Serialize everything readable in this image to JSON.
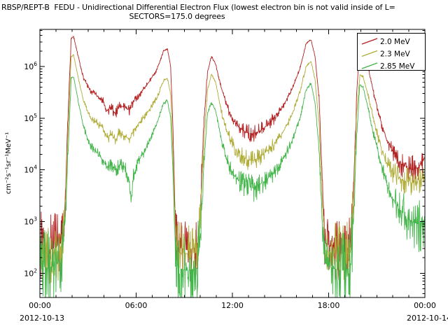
{
  "chart_data": {
    "type": "line",
    "title_line1": "RBSP/REPT-B  FEDU - Unidirectional Differential Electron Flux (lowest electron bin is not valid inside of L=",
    "title_line2": "SECTORS=175.0 degrees",
    "ylabel": "cm⁻²s⁻¹sr⁻¹MeV⁻¹",
    "x_axis": {
      "range_hours": [
        0,
        24
      ],
      "ticks": [
        {
          "t": 0,
          "label": "00:00"
        },
        {
          "t": 6,
          "label": "06:00"
        },
        {
          "t": 12,
          "label": "12:00"
        },
        {
          "t": 18,
          "label": "18:00"
        },
        {
          "t": 24,
          "label": "00:00"
        }
      ],
      "minor_tick_hours": 1,
      "date_left": "2012-10-13",
      "date_right": "2012-10-14"
    },
    "y_axis": {
      "scale": "log",
      "tick_exponents": [
        2,
        3,
        4,
        5,
        6
      ],
      "range_log10": [
        1.53,
        6.72
      ]
    },
    "legend": {
      "position": "top-right"
    },
    "point_format": "[hours_since_2012-10-13T00:00, log10_flux, noise_amplitude_decades]",
    "series": [
      {
        "name": "2.0 MeV",
        "color": "#b22222",
        "points": [
          [
            0.0,
            2.5,
            0.7
          ],
          [
            0.5,
            2.45,
            0.7
          ],
          [
            1.0,
            2.5,
            0.65
          ],
          [
            1.35,
            2.6,
            0.5
          ],
          [
            1.55,
            3.2,
            0.15
          ],
          [
            1.75,
            5.0,
            0.05
          ],
          [
            1.95,
            6.55,
            0.02
          ],
          [
            2.1,
            6.58,
            0.02
          ],
          [
            2.35,
            6.25,
            0.03
          ],
          [
            2.7,
            5.8,
            0.04
          ],
          [
            3.1,
            5.55,
            0.06
          ],
          [
            3.5,
            5.45,
            0.07
          ],
          [
            3.9,
            5.35,
            0.08
          ],
          [
            4.2,
            5.15,
            0.1
          ],
          [
            4.45,
            5.2,
            0.1
          ],
          [
            4.7,
            5.1,
            0.12
          ],
          [
            5.0,
            5.25,
            0.1
          ],
          [
            5.3,
            5.2,
            0.1
          ],
          [
            5.6,
            5.15,
            0.1
          ],
          [
            5.9,
            5.35,
            0.07
          ],
          [
            6.3,
            5.5,
            0.05
          ],
          [
            6.8,
            5.7,
            0.04
          ],
          [
            7.3,
            5.95,
            0.03
          ],
          [
            7.7,
            6.3,
            0.02
          ],
          [
            7.95,
            6.35,
            0.02
          ],
          [
            8.15,
            6.0,
            0.03
          ],
          [
            8.3,
            4.8,
            0.1
          ],
          [
            8.45,
            2.8,
            0.5
          ],
          [
            8.6,
            2.5,
            0.6
          ],
          [
            9.2,
            2.45,
            0.6
          ],
          [
            9.8,
            2.5,
            0.6
          ],
          [
            10.0,
            3.2,
            0.3
          ],
          [
            10.2,
            4.8,
            0.08
          ],
          [
            10.45,
            5.9,
            0.03
          ],
          [
            10.7,
            6.2,
            0.02
          ],
          [
            10.95,
            6.05,
            0.03
          ],
          [
            11.3,
            5.6,
            0.06
          ],
          [
            11.7,
            5.2,
            0.1
          ],
          [
            12.1,
            4.95,
            0.13
          ],
          [
            12.5,
            4.8,
            0.17
          ],
          [
            12.9,
            4.72,
            0.18
          ],
          [
            13.3,
            4.7,
            0.18
          ],
          [
            13.7,
            4.75,
            0.15
          ],
          [
            14.1,
            4.85,
            0.12
          ],
          [
            14.6,
            5.0,
            0.08
          ],
          [
            15.1,
            5.2,
            0.06
          ],
          [
            15.7,
            5.55,
            0.04
          ],
          [
            16.2,
            5.95,
            0.03
          ],
          [
            16.6,
            6.45,
            0.02
          ],
          [
            16.9,
            6.52,
            0.02
          ],
          [
            17.15,
            6.2,
            0.03
          ],
          [
            17.4,
            5.4,
            0.08
          ],
          [
            17.6,
            3.8,
            0.3
          ],
          [
            17.75,
            2.6,
            0.55
          ],
          [
            18.2,
            2.5,
            0.6
          ],
          [
            18.8,
            2.45,
            0.6
          ],
          [
            19.35,
            2.5,
            0.6
          ],
          [
            19.55,
            3.6,
            0.25
          ],
          [
            19.75,
            5.5,
            0.05
          ],
          [
            19.95,
            6.45,
            0.02
          ],
          [
            20.15,
            6.4,
            0.02
          ],
          [
            20.45,
            6.0,
            0.04
          ],
          [
            20.8,
            5.5,
            0.06
          ],
          [
            21.2,
            5.0,
            0.1
          ],
          [
            21.6,
            4.6,
            0.15
          ],
          [
            22.0,
            4.35,
            0.18
          ],
          [
            22.4,
            4.15,
            0.25
          ],
          [
            22.8,
            4.05,
            0.28
          ],
          [
            23.2,
            4.0,
            0.28
          ],
          [
            23.6,
            4.05,
            0.28
          ],
          [
            24.0,
            4.25,
            0.3
          ]
        ]
      },
      {
        "name": "2.3 MeV",
        "color": "#b0ad3a",
        "points": [
          [
            0.0,
            2.4,
            0.6
          ],
          [
            0.5,
            2.35,
            0.6
          ],
          [
            1.0,
            2.4,
            0.6
          ],
          [
            1.35,
            2.5,
            0.5
          ],
          [
            1.55,
            3.0,
            0.15
          ],
          [
            1.75,
            4.7,
            0.05
          ],
          [
            1.95,
            6.2,
            0.02
          ],
          [
            2.1,
            6.22,
            0.02
          ],
          [
            2.35,
            5.85,
            0.03
          ],
          [
            2.7,
            5.35,
            0.05
          ],
          [
            3.1,
            5.05,
            0.07
          ],
          [
            3.5,
            4.92,
            0.08
          ],
          [
            3.9,
            4.82,
            0.09
          ],
          [
            4.2,
            4.62,
            0.11
          ],
          [
            4.45,
            4.68,
            0.11
          ],
          [
            4.7,
            4.58,
            0.13
          ],
          [
            5.0,
            4.72,
            0.11
          ],
          [
            5.3,
            4.65,
            0.11
          ],
          [
            5.6,
            4.6,
            0.11
          ],
          [
            5.9,
            4.8,
            0.08
          ],
          [
            6.3,
            4.95,
            0.06
          ],
          [
            6.8,
            5.15,
            0.05
          ],
          [
            7.3,
            5.4,
            0.04
          ],
          [
            7.7,
            5.72,
            0.03
          ],
          [
            7.95,
            5.78,
            0.03
          ],
          [
            8.15,
            5.45,
            0.04
          ],
          [
            8.3,
            4.3,
            0.12
          ],
          [
            8.45,
            2.7,
            0.5
          ],
          [
            8.6,
            2.4,
            0.6
          ],
          [
            9.2,
            2.38,
            0.6
          ],
          [
            9.8,
            2.4,
            0.6
          ],
          [
            10.0,
            3.0,
            0.3
          ],
          [
            10.2,
            4.4,
            0.08
          ],
          [
            10.45,
            5.55,
            0.03
          ],
          [
            10.7,
            5.85,
            0.02
          ],
          [
            10.95,
            5.7,
            0.03
          ],
          [
            11.3,
            5.15,
            0.07
          ],
          [
            11.7,
            4.7,
            0.12
          ],
          [
            12.1,
            4.45,
            0.15
          ],
          [
            12.5,
            4.3,
            0.18
          ],
          [
            12.9,
            4.2,
            0.2
          ],
          [
            13.3,
            4.18,
            0.2
          ],
          [
            13.7,
            4.25,
            0.17
          ],
          [
            14.1,
            4.35,
            0.13
          ],
          [
            14.6,
            4.5,
            0.09
          ],
          [
            15.1,
            4.7,
            0.07
          ],
          [
            15.7,
            5.05,
            0.05
          ],
          [
            16.2,
            5.5,
            0.04
          ],
          [
            16.6,
            6.0,
            0.02
          ],
          [
            16.9,
            6.1,
            0.02
          ],
          [
            17.15,
            5.75,
            0.03
          ],
          [
            17.4,
            4.9,
            0.1
          ],
          [
            17.6,
            3.4,
            0.3
          ],
          [
            17.75,
            2.45,
            0.55
          ],
          [
            18.2,
            2.4,
            0.6
          ],
          [
            18.8,
            2.38,
            0.6
          ],
          [
            19.35,
            2.4,
            0.6
          ],
          [
            19.55,
            3.3,
            0.25
          ],
          [
            19.75,
            5.1,
            0.05
          ],
          [
            19.95,
            5.85,
            0.02
          ],
          [
            20.15,
            5.8,
            0.03
          ],
          [
            20.45,
            5.45,
            0.05
          ],
          [
            20.8,
            5.0,
            0.08
          ],
          [
            21.2,
            4.5,
            0.12
          ],
          [
            21.6,
            4.15,
            0.17
          ],
          [
            22.0,
            3.95,
            0.22
          ],
          [
            22.4,
            3.85,
            0.26
          ],
          [
            22.8,
            3.78,
            0.28
          ],
          [
            23.2,
            3.75,
            0.28
          ],
          [
            23.6,
            3.78,
            0.28
          ],
          [
            24.0,
            3.9,
            0.3
          ]
        ]
      },
      {
        "name": "2.85 MeV",
        "color": "#43b54a",
        "points": [
          [
            0.0,
            2.15,
            0.75
          ],
          [
            0.5,
            2.1,
            0.75
          ],
          [
            1.0,
            2.15,
            0.7
          ],
          [
            1.35,
            2.3,
            0.55
          ],
          [
            1.55,
            2.8,
            0.2
          ],
          [
            1.75,
            4.3,
            0.06
          ],
          [
            1.95,
            5.78,
            0.02
          ],
          [
            2.1,
            5.8,
            0.02
          ],
          [
            2.35,
            5.4,
            0.04
          ],
          [
            2.7,
            4.85,
            0.06
          ],
          [
            3.1,
            4.5,
            0.08
          ],
          [
            3.5,
            4.35,
            0.1
          ],
          [
            3.9,
            4.2,
            0.11
          ],
          [
            4.2,
            4.05,
            0.13
          ],
          [
            4.45,
            4.1,
            0.13
          ],
          [
            4.7,
            4.0,
            0.15
          ],
          [
            5.0,
            4.1,
            0.13
          ],
          [
            5.3,
            4.05,
            0.13
          ],
          [
            5.55,
            3.8,
            0.15
          ],
          [
            5.7,
            3.45,
            0.2
          ],
          [
            5.85,
            3.9,
            0.13
          ],
          [
            6.1,
            4.15,
            0.1
          ],
          [
            6.5,
            4.35,
            0.08
          ],
          [
            6.9,
            4.6,
            0.06
          ],
          [
            7.3,
            4.9,
            0.05
          ],
          [
            7.7,
            5.28,
            0.03
          ],
          [
            7.95,
            5.35,
            0.03
          ],
          [
            8.15,
            5.0,
            0.05
          ],
          [
            8.3,
            3.9,
            0.15
          ],
          [
            8.45,
            2.4,
            0.6
          ],
          [
            8.6,
            2.1,
            0.75
          ],
          [
            9.2,
            2.05,
            0.75
          ],
          [
            9.8,
            2.1,
            0.75
          ],
          [
            10.0,
            2.7,
            0.35
          ],
          [
            10.2,
            4.0,
            0.1
          ],
          [
            10.45,
            5.1,
            0.04
          ],
          [
            10.7,
            5.3,
            0.03
          ],
          [
            10.95,
            5.15,
            0.04
          ],
          [
            11.3,
            4.6,
            0.09
          ],
          [
            11.7,
            4.15,
            0.15
          ],
          [
            12.1,
            3.9,
            0.2
          ],
          [
            12.5,
            3.75,
            0.25
          ],
          [
            12.9,
            3.68,
            0.27
          ],
          [
            13.3,
            3.65,
            0.27
          ],
          [
            13.7,
            3.72,
            0.23
          ],
          [
            14.1,
            3.8,
            0.18
          ],
          [
            14.6,
            3.95,
            0.13
          ],
          [
            15.1,
            4.15,
            0.1
          ],
          [
            15.7,
            4.55,
            0.07
          ],
          [
            16.2,
            5.0,
            0.05
          ],
          [
            16.6,
            5.55,
            0.03
          ],
          [
            16.9,
            5.68,
            0.02
          ],
          [
            17.15,
            5.3,
            0.04
          ],
          [
            17.4,
            4.4,
            0.12
          ],
          [
            17.6,
            3.0,
            0.35
          ],
          [
            17.75,
            2.2,
            0.65
          ],
          [
            18.2,
            2.1,
            0.75
          ],
          [
            18.8,
            2.05,
            0.75
          ],
          [
            19.35,
            2.1,
            0.7
          ],
          [
            19.55,
            3.0,
            0.3
          ],
          [
            19.75,
            4.7,
            0.06
          ],
          [
            19.95,
            5.65,
            0.02
          ],
          [
            20.15,
            5.6,
            0.03
          ],
          [
            20.45,
            5.2,
            0.06
          ],
          [
            20.8,
            4.7,
            0.09
          ],
          [
            21.2,
            4.2,
            0.14
          ],
          [
            21.6,
            3.75,
            0.22
          ],
          [
            22.0,
            3.45,
            0.3
          ],
          [
            22.4,
            3.25,
            0.4
          ],
          [
            22.8,
            3.1,
            0.5
          ],
          [
            23.2,
            3.0,
            0.55
          ],
          [
            23.6,
            2.95,
            0.6
          ],
          [
            24.0,
            3.05,
            0.6
          ]
        ]
      }
    ]
  }
}
